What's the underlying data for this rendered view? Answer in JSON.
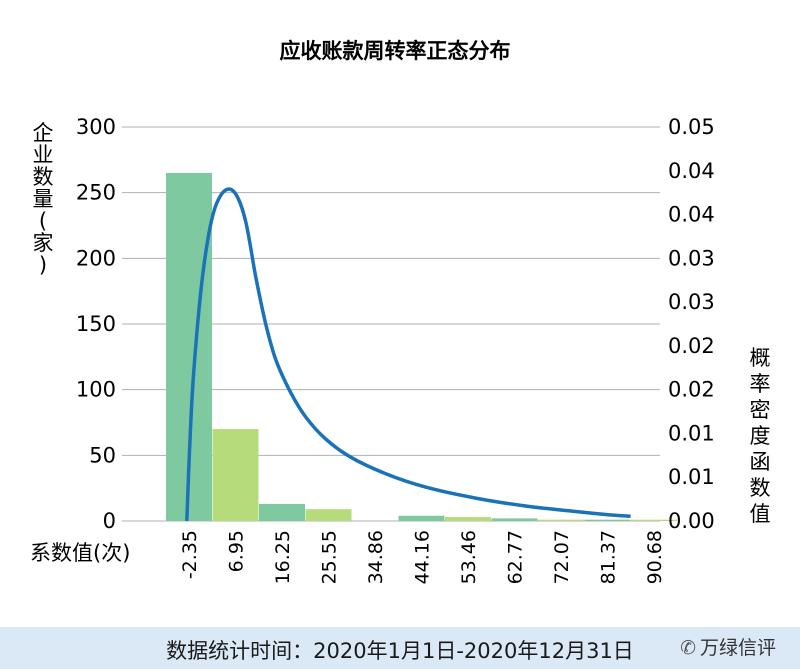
{
  "chart_data": {
    "type": "bar",
    "title": "应收账款周转率正态分布",
    "ylabel": "企业数量(家)",
    "ylabel_right": "概率密度函数值",
    "xlabel": "系数值(次)",
    "ylim": [
      0,
      300
    ],
    "ylim_right": [
      0,
      0.05
    ],
    "yticks": [
      "0",
      "50",
      "100",
      "150",
      "200",
      "250",
      "300"
    ],
    "yticks_right": [
      "0.00",
      "0.01",
      "0.01",
      "0.02",
      "0.02",
      "0.03",
      "0.03",
      "0.04",
      "0.04",
      "0.05"
    ],
    "categories": [
      "-2.35",
      "6.95",
      "16.25",
      "25.55",
      "34.86",
      "44.16",
      "53.46",
      "62.77",
      "72.07",
      "81.37",
      "90.68"
    ],
    "values": [
      265,
      70,
      13,
      9,
      0,
      4,
      3,
      2,
      1,
      1,
      1
    ],
    "bar_colors": [
      "#7ec9a0",
      "#b6db7a",
      "#7ec9a0",
      "#b6db7a",
      "#7ec9a0",
      "#7ec9a0",
      "#b6db7a",
      "#7ec9a0",
      "#b6db7a",
      "#7ec9a0",
      "#b6db7a"
    ],
    "curve": {
      "color": "#1a72b8",
      "x": [
        -2.8,
        -2.3,
        -1.5,
        0.0,
        1.5,
        3.0,
        5.0,
        7.0,
        9.0,
        11.0,
        13.0,
        15.0,
        18.0,
        21.0,
        25.0,
        30.0,
        37.0,
        45.0,
        55.0,
        65.0,
        75.0,
        81.5,
        86.0
      ],
      "y": [
        0.0,
        0.008,
        0.018,
        0.029,
        0.036,
        0.04,
        0.042,
        0.0415,
        0.038,
        0.031,
        0.025,
        0.0205,
        0.0163,
        0.0132,
        0.0104,
        0.0081,
        0.006,
        0.0043,
        0.0029,
        0.0019,
        0.0012,
        0.0008,
        0.0006
      ]
    },
    "grid": true
  },
  "footer": {
    "text": "数据统计时间：2020年1月1日-2020年12月31日",
    "watermark": "万绿信评"
  }
}
